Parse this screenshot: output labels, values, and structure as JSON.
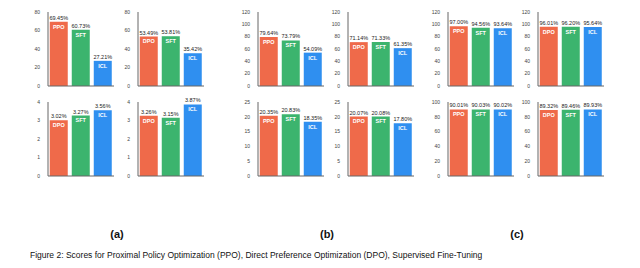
{
  "chart_data": [
    {
      "type": "bar",
      "categories": [
        "PPO",
        "SFT",
        "ICL"
      ],
      "values": [
        69.45,
        60.73,
        27.21
      ],
      "value_labels": [
        "69.45%",
        "60.73%",
        "27.21%"
      ],
      "colors": [
        "#ef6a4a",
        "#3cb46e",
        "#2f8ff0"
      ],
      "ylim": [
        0,
        80
      ],
      "yticks": [
        0,
        20,
        40,
        60,
        80
      ],
      "data_labels": true
    },
    {
      "type": "bar",
      "categories": [
        "DPO",
        "SFT",
        "ICL"
      ],
      "values": [
        53.49,
        53.81,
        35.42
      ],
      "value_labels": [
        "53.49%",
        "53.81%",
        "35.42%"
      ],
      "colors": [
        "#ef6a4a",
        "#3cb46e",
        "#2f8ff0"
      ],
      "ylim": [
        0,
        80
      ],
      "yticks": [
        0,
        20,
        40,
        60,
        80
      ],
      "data_labels": true
    },
    {
      "type": "bar",
      "categories": [
        "DPO",
        "SFT",
        "ICL"
      ],
      "values": [
        3.02,
        3.27,
        3.56
      ],
      "value_labels": [
        "3.02%",
        "3.27%",
        "3.56%"
      ],
      "colors": [
        "#ef6a4a",
        "#3cb46e",
        "#2f8ff0"
      ],
      "ylim": [
        0,
        4
      ],
      "yticks": [
        0,
        1,
        2,
        3,
        4
      ],
      "data_labels": true
    },
    {
      "type": "bar",
      "categories": [
        "DPO",
        "SFT",
        "ICL"
      ],
      "values": [
        3.26,
        3.15,
        3.87
      ],
      "value_labels": [
        "3.26%",
        "3.15%",
        "3.87%"
      ],
      "colors": [
        "#ef6a4a",
        "#3cb46e",
        "#2f8ff0"
      ],
      "ylim": [
        0,
        4
      ],
      "yticks": [
        0,
        1,
        2,
        3,
        4
      ],
      "data_labels": true
    },
    {
      "type": "bar",
      "categories": [
        "PPO",
        "SFT",
        "ICL"
      ],
      "values": [
        79.64,
        73.79,
        54.09
      ],
      "value_labels": [
        "79.64%",
        "73.79%",
        "54.09%"
      ],
      "colors": [
        "#ef6a4a",
        "#3cb46e",
        "#2f8ff0"
      ],
      "ylim": [
        0,
        120
      ],
      "yticks": [
        0,
        20,
        40,
        60,
        80,
        100,
        120
      ],
      "data_labels": true
    },
    {
      "type": "bar",
      "categories": [
        "DPO",
        "SFT",
        "ICL"
      ],
      "values": [
        71.14,
        71.33,
        61.35
      ],
      "value_labels": [
        "71.14%",
        "71.33%",
        "61.35%"
      ],
      "colors": [
        "#ef6a4a",
        "#3cb46e",
        "#2f8ff0"
      ],
      "ylim": [
        0,
        120
      ],
      "yticks": [
        0,
        20,
        40,
        60,
        80,
        100,
        120
      ],
      "data_labels": true
    },
    {
      "type": "bar",
      "categories": [
        "PPO",
        "SFT",
        "ICL"
      ],
      "values": [
        20.35,
        20.83,
        18.35
      ],
      "value_labels": [
        "20.35%",
        "20.83%",
        "18.35%"
      ],
      "colors": [
        "#ef6a4a",
        "#3cb46e",
        "#2f8ff0"
      ],
      "ylim": [
        0,
        25
      ],
      "yticks": [
        0,
        5,
        10,
        15,
        20,
        25
      ],
      "data_labels": true
    },
    {
      "type": "bar",
      "categories": [
        "DPO",
        "SFT",
        "ICL"
      ],
      "values": [
        20.07,
        20.08,
        17.8
      ],
      "value_labels": [
        "20.07%",
        "20.08%",
        "17.80%"
      ],
      "colors": [
        "#ef6a4a",
        "#3cb46e",
        "#2f8ff0"
      ],
      "ylim": [
        0,
        25
      ],
      "yticks": [
        0,
        5,
        10,
        15,
        20,
        25
      ],
      "data_labels": true
    },
    {
      "type": "bar",
      "categories": [
        "PPO",
        "SFT",
        "ICL"
      ],
      "values": [
        97.0,
        94.56,
        93.64
      ],
      "value_labels": [
        "97.00%",
        "94.56%",
        "93.64%"
      ],
      "colors": [
        "#ef6a4a",
        "#3cb46e",
        "#2f8ff0"
      ],
      "ylim": [
        0,
        120
      ],
      "yticks": [
        0,
        20,
        40,
        60,
        80,
        100,
        120
      ],
      "data_labels": true
    },
    {
      "type": "bar",
      "categories": [
        "DPO",
        "SFT",
        "ICL"
      ],
      "values": [
        96.01,
        96.2,
        95.64
      ],
      "value_labels": [
        "96.01%",
        "96.20%",
        "95.64%"
      ],
      "colors": [
        "#ef6a4a",
        "#3cb46e",
        "#2f8ff0"
      ],
      "ylim": [
        0,
        120
      ],
      "yticks": [
        0,
        20,
        40,
        60,
        80,
        100,
        120
      ],
      "data_labels": true
    },
    {
      "type": "bar",
      "categories": [
        "PPO",
        "SFT",
        "ICL"
      ],
      "values": [
        90.01,
        90.03,
        90.02
      ],
      "value_labels": [
        "90.01%",
        "90.03%",
        "90.02%"
      ],
      "colors": [
        "#ef6a4a",
        "#3cb46e",
        "#2f8ff0"
      ],
      "ylim": [
        0,
        100
      ],
      "yticks": [
        0,
        20,
        40,
        60,
        80,
        100
      ],
      "data_labels": true
    },
    {
      "type": "bar",
      "categories": [
        "DPO",
        "SFT",
        "ICL"
      ],
      "values": [
        89.32,
        89.46,
        89.93
      ],
      "value_labels": [
        "89.32%",
        "89.46%",
        "89.93%"
      ],
      "colors": [
        "#ef6a4a",
        "#3cb46e",
        "#2f8ff0"
      ],
      "ylim": [
        0,
        100
      ],
      "yticks": [
        0,
        20,
        40,
        60,
        80,
        100
      ],
      "data_labels": true
    }
  ],
  "panel_labels": [
    "(a)",
    "(b)",
    "(c)"
  ],
  "caption": "Figure 2: Scores for Proximal Policy Optimization (PPO), Direct Preference Optimization (DPO), Supervised Fine-Tuning"
}
